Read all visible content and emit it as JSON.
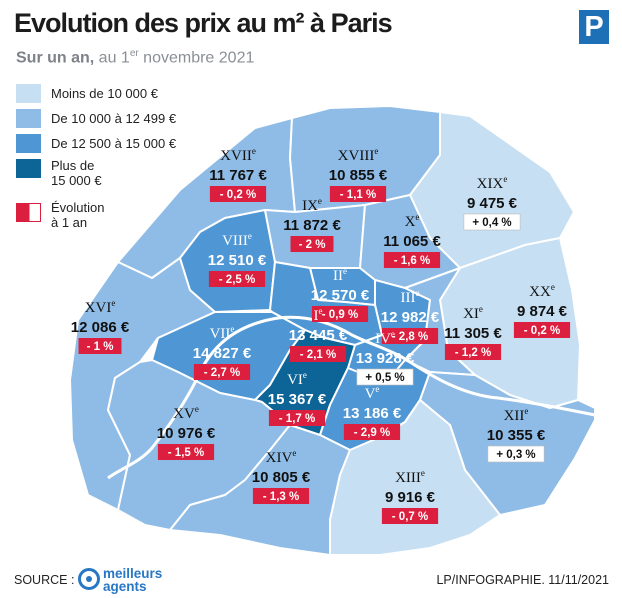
{
  "header": {
    "title": "Evolution des prix au m² à Paris",
    "subtitle_bold": "Sur un an,",
    "subtitle_rest_a": " au 1",
    "subtitle_sup": "er",
    "subtitle_rest_b": " novembre 2021",
    "logo": "P"
  },
  "legend": {
    "items": [
      {
        "label": "Moins de 10 000 €",
        "color": "#c6dff2"
      },
      {
        "label": "De 10 000 à 12 499 €",
        "color": "#8fbce6"
      },
      {
        "label": "De 12 500 à 15 000 €",
        "color": "#4f97d4"
      },
      {
        "label_1": "Plus de",
        "label_2": "15 000 €",
        "color": "#0d6497"
      },
      {
        "label_1": "Évolution",
        "label_2": "à 1 an",
        "color": "#dc1f3e"
      }
    ]
  },
  "arrondissements": [
    {
      "roman": "XVII",
      "price": "11 767 €",
      "change": "- 0,2 %",
      "tier": "mid"
    },
    {
      "roman": "XVIII",
      "price": "10 855 €",
      "change": "- 1,1 %",
      "tier": "mid"
    },
    {
      "roman": "XIX",
      "price": "9 475 €",
      "change": "+ 0,4 %",
      "tier": "low"
    },
    {
      "roman": "IX",
      "price": "11 872 €",
      "change": "- 2 %",
      "tier": "mid"
    },
    {
      "roman": "X",
      "price": "11 065 €",
      "change": "- 1,6 %",
      "tier": "mid"
    },
    {
      "roman": "VIII",
      "price": "12 510 €",
      "change": "- 2,5 %",
      "tier": "high"
    },
    {
      "roman": "II",
      "price": "12 570 €",
      "change": "- 0,9 %",
      "tier": "high"
    },
    {
      "roman": "XVI",
      "price": "12 086 €",
      "change": "- 1 %",
      "tier": "mid"
    },
    {
      "roman": "I",
      "price": "13 445 €",
      "change": "- 2,1 %",
      "tier": "high"
    },
    {
      "roman": "III",
      "price": "12 982 €",
      "change": "- 2,8 %",
      "tier": "high"
    },
    {
      "roman": "XX",
      "price": "9 874 €",
      "change": "- 0,2 %",
      "tier": "low"
    },
    {
      "roman": "XI",
      "price": "11 305 €",
      "change": "- 1,2 %",
      "tier": "mid"
    },
    {
      "roman": "VII",
      "price": "14 827 €",
      "change": "- 2,7 %",
      "tier": "high"
    },
    {
      "roman": "IV",
      "price": "13 928 €",
      "change": "+ 0,5 %",
      "tier": "high"
    },
    {
      "roman": "VI",
      "price": "15 367 €",
      "change": "- 1,7 %",
      "tier": "top"
    },
    {
      "roman": "V",
      "price": "13 186 €",
      "change": "- 2,9 %",
      "tier": "high"
    },
    {
      "roman": "XV",
      "price": "10 976 €",
      "change": "- 1,5 %",
      "tier": "mid"
    },
    {
      "roman": "XII",
      "price": "10 355 €",
      "change": "+ 0,3 %",
      "tier": "mid"
    },
    {
      "roman": "XIV",
      "price": "10 805 €",
      "change": "- 1,3 %",
      "tier": "mid"
    },
    {
      "roman": "XIII",
      "price": "9 916 €",
      "change": "- 0,7 %",
      "tier": "low"
    }
  ],
  "footer": {
    "source_label": "SOURCE :",
    "partner_line1": "meilleurs",
    "partner_line2": "agents",
    "credit": "LP/INFOGRAPHIE.  11/11/2021"
  }
}
